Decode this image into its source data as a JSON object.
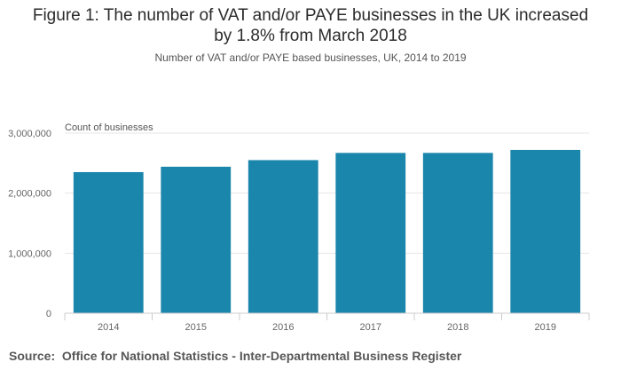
{
  "chart_data": {
    "type": "bar",
    "title": "Figure 1: The number of VAT and/or PAYE businesses in the UK increased by 1.8% from March 2018",
    "title_line1": "Figure 1: The number of VAT and/or PAYE businesses in the UK increased",
    "title_line2": "by 1.8% from March 2018",
    "subtitle": "Number of VAT and/or PAYE based businesses, UK, 2014 to 2019",
    "ylabel": "Count of businesses",
    "xlabel": "",
    "categories": [
      "2014",
      "2015",
      "2016",
      "2017",
      "2018",
      "2019"
    ],
    "values": [
      2350000,
      2440000,
      2550000,
      2670000,
      2670000,
      2720000
    ],
    "ylim": [
      0,
      3000000
    ],
    "y_ticks": [
      0,
      1000000,
      2000000,
      3000000
    ],
    "y_tick_labels": [
      "0",
      "1,000,000",
      "2,000,000",
      "3,000,000"
    ],
    "grid": true,
    "legend": "none",
    "bar_color": "#1b86ac",
    "grid_color": "#e6e6e6"
  },
  "source": {
    "label": "Source:",
    "text": "Office for National Statistics - Inter-Departmental Business Register"
  }
}
